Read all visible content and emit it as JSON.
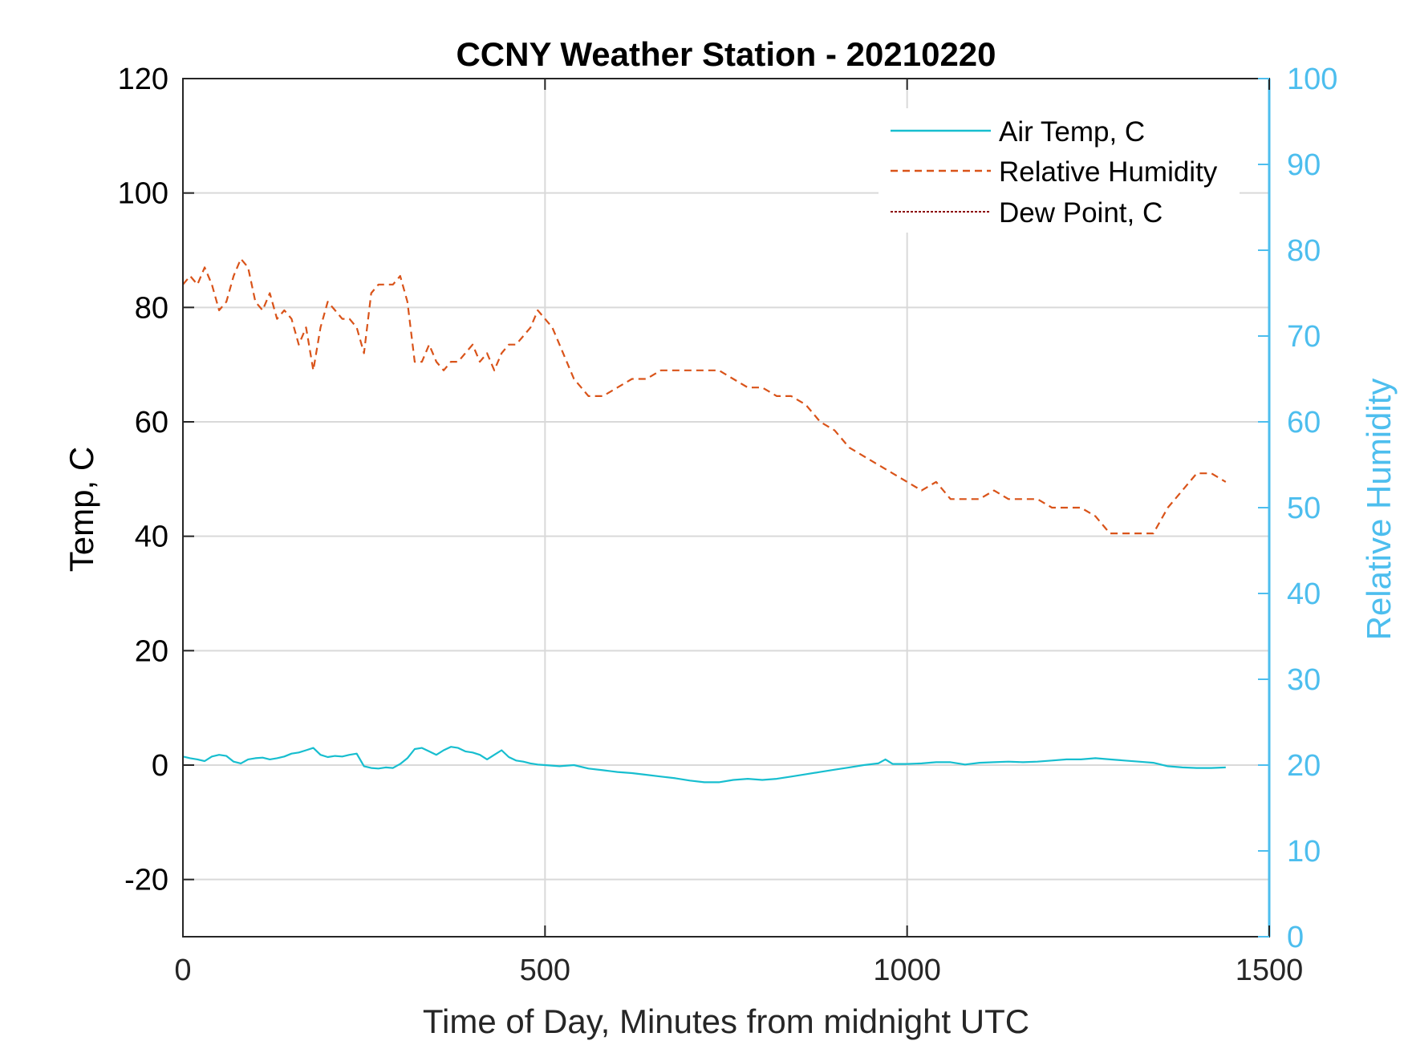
{
  "colors": {
    "air_temp": "#17becf",
    "relative_humidity": "#d95319",
    "dew_point": "#8b0000",
    "right_axis": "#4dbeee",
    "grid": "#d9d9d9"
  },
  "chart_data": {
    "type": "line",
    "title": "CCNY Weather Station - 20210220",
    "xlabel": "Time of Day, Minutes from midnight UTC",
    "ylabel_left": "Temp, C",
    "ylabel_right": "Relative Humidity",
    "xlim": [
      0,
      1500
    ],
    "ylim_left": [
      -30,
      120
    ],
    "ylim_right": [
      0,
      100
    ],
    "x_ticks": [
      0,
      500,
      1000,
      1500
    ],
    "y_ticks_left": [
      -20,
      0,
      20,
      40,
      60,
      80,
      100,
      120
    ],
    "y_ticks_right": [
      0,
      10,
      20,
      30,
      40,
      50,
      60,
      70,
      80,
      90,
      100
    ],
    "grid": true,
    "legend_position": "top-right",
    "series": [
      {
        "name": "Air Temp, C",
        "axis": "left",
        "style": "solid",
        "x": [
          0,
          10,
          20,
          30,
          40,
          50,
          60,
          70,
          80,
          90,
          100,
          110,
          120,
          130,
          140,
          150,
          160,
          170,
          180,
          190,
          200,
          210,
          220,
          230,
          240,
          250,
          260,
          270,
          280,
          290,
          300,
          310,
          320,
          330,
          340,
          350,
          360,
          370,
          380,
          390,
          400,
          410,
          420,
          430,
          440,
          450,
          460,
          470,
          480,
          490,
          500,
          520,
          540,
          560,
          580,
          600,
          620,
          640,
          660,
          680,
          700,
          720,
          740,
          760,
          780,
          800,
          820,
          840,
          860,
          880,
          900,
          920,
          940,
          960,
          970,
          980,
          1000,
          1020,
          1040,
          1060,
          1080,
          1100,
          1120,
          1140,
          1160,
          1180,
          1200,
          1220,
          1240,
          1260,
          1280,
          1300,
          1320,
          1340,
          1360,
          1380,
          1400,
          1420,
          1440
        ],
        "values": [
          1.5,
          1.2,
          1.0,
          0.7,
          1.5,
          1.8,
          1.6,
          0.6,
          0.3,
          1.0,
          1.2,
          1.3,
          1.0,
          1.2,
          1.5,
          2.0,
          2.2,
          2.6,
          3.0,
          1.8,
          1.4,
          1.6,
          1.5,
          1.8,
          2.0,
          -0.2,
          -0.5,
          -0.6,
          -0.4,
          -0.5,
          0.2,
          1.2,
          2.8,
          3.0,
          2.4,
          1.8,
          2.6,
          3.2,
          3.0,
          2.4,
          2.2,
          1.8,
          1.0,
          1.8,
          2.6,
          1.4,
          0.8,
          0.6,
          0.3,
          0.1,
          0.0,
          -0.2,
          0.0,
          -0.6,
          -0.9,
          -1.2,
          -1.4,
          -1.7,
          -2.0,
          -2.3,
          -2.7,
          -3.0,
          -3.0,
          -2.6,
          -2.4,
          -2.6,
          -2.4,
          -2.0,
          -1.6,
          -1.2,
          -0.8,
          -0.4,
          0.0,
          0.3,
          1.0,
          0.2,
          0.2,
          0.3,
          0.5,
          0.5,
          0.1,
          0.4,
          0.5,
          0.6,
          0.5,
          0.6,
          0.8,
          1.0,
          1.0,
          1.2,
          1.0,
          0.8,
          0.6,
          0.4,
          -0.2,
          -0.4,
          -0.5,
          -0.5,
          -0.4
        ]
      },
      {
        "name": "Relative Humidity",
        "axis": "right",
        "style": "dashed",
        "x": [
          0,
          10,
          20,
          30,
          40,
          50,
          60,
          70,
          80,
          90,
          100,
          110,
          120,
          130,
          140,
          150,
          160,
          170,
          180,
          190,
          200,
          210,
          220,
          230,
          240,
          250,
          260,
          270,
          280,
          290,
          300,
          310,
          320,
          330,
          340,
          350,
          360,
          370,
          380,
          390,
          400,
          410,
          420,
          430,
          440,
          450,
          460,
          470,
          480,
          490,
          500,
          510,
          520,
          530,
          540,
          550,
          560,
          580,
          600,
          620,
          640,
          660,
          680,
          700,
          720,
          740,
          760,
          780,
          800,
          820,
          840,
          860,
          880,
          900,
          920,
          940,
          960,
          980,
          1000,
          1020,
          1040,
          1060,
          1080,
          1100,
          1120,
          1140,
          1160,
          1180,
          1200,
          1220,
          1240,
          1260,
          1280,
          1300,
          1320,
          1340,
          1360,
          1380,
          1400,
          1420,
          1440
        ],
        "values": [
          76,
          77,
          76,
          78,
          76,
          73,
          74,
          77,
          79,
          78,
          74,
          73,
          75,
          72,
          73,
          72,
          69,
          71,
          66,
          71,
          74,
          73,
          72,
          72,
          71,
          68,
          75,
          76,
          76,
          76,
          77,
          74,
          67,
          67,
          69,
          67,
          66,
          67,
          67,
          68,
          69,
          67,
          68,
          66,
          68,
          69,
          69,
          70,
          71,
          73,
          72,
          71,
          69,
          67,
          65,
          64,
          63,
          63,
          64,
          65,
          65,
          66,
          66,
          66,
          66,
          66,
          65,
          64,
          64,
          63,
          63,
          62,
          60,
          59,
          57,
          56,
          55,
          54,
          53,
          52,
          53,
          51,
          51,
          51,
          52,
          51,
          51,
          51,
          50,
          50,
          50,
          49,
          47,
          47,
          47,
          47,
          50,
          52,
          54,
          54,
          53
        ]
      },
      {
        "name": "Dew Point, C",
        "axis": "left",
        "style": "dotted",
        "x": [],
        "values": []
      }
    ]
  }
}
